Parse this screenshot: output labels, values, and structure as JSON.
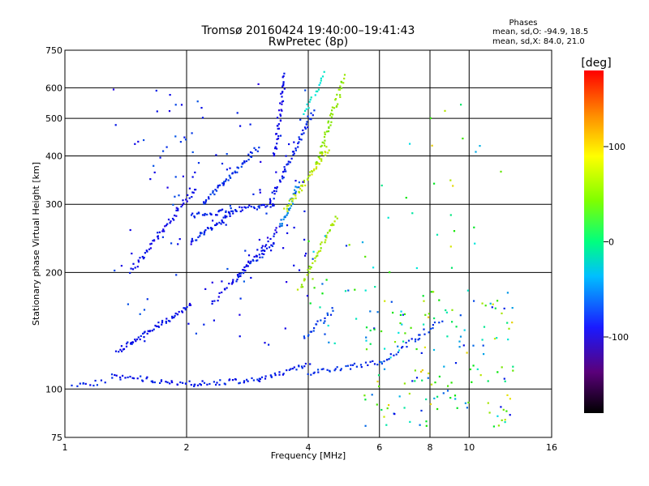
{
  "chart_data": {
    "type": "scatter",
    "title": "Tromsø 20160424 19:40:00–19:41:43",
    "subtitle": "RwPretec (8p)",
    "xlabel": "Frequency [MHz]",
    "ylabel": "Stationary phase Virtual Height [km]",
    "x_scale": "log",
    "y_scale": "log",
    "xlim": [
      1,
      16
    ],
    "ylim": [
      75,
      750
    ],
    "x_ticks": [
      1,
      2,
      4,
      6,
      8,
      10,
      16
    ],
    "x_tick_labels": [
      "1",
      "2",
      "4",
      "6",
      "8",
      "10",
      "16"
    ],
    "y_ticks": [
      75,
      100,
      200,
      300,
      400,
      500,
      600,
      750
    ],
    "y_tick_labels": [
      "75",
      "100",
      "200",
      "300",
      "400",
      "500",
      "600",
      "750"
    ],
    "grid": true,
    "legend": {
      "title": "Phases",
      "lines": [
        "mean, sd,O:  -94.9, 18.5",
        "mean, sd,X:  84.0, 21.0"
      ],
      "placement": "top-right"
    },
    "colorbar": {
      "label": "[deg]",
      "min": -180,
      "max": 180,
      "ticks": [
        100,
        0,
        -100
      ],
      "tick_labels": [
        "100",
        "0",
        "-100"
      ],
      "colormap": "rainbow"
    },
    "traces": [
      {
        "x": [
          1.05,
          1.25
        ],
        "y": [
          103,
          104
        ],
        "phase": -100,
        "n": 12
      },
      {
        "x": [
          1.3,
          2.1
        ],
        "y": [
          108,
          103
        ],
        "phase": -100,
        "n": 40
      },
      {
        "x": [
          2.1,
          3.0
        ],
        "y": [
          103,
          106
        ],
        "phase": -100,
        "n": 30
      },
      {
        "x": [
          3.0,
          4.0
        ],
        "y": [
          106,
          115
        ],
        "phase": -100,
        "n": 28
      },
      {
        "x": [
          4.0,
          6.2
        ],
        "y": [
          110,
          118
        ],
        "phase": -95,
        "n": 35
      },
      {
        "x": [
          1.35,
          2.05
        ],
        "y": [
          125,
          165
        ],
        "phase": -105,
        "n": 60
      },
      {
        "x": [
          1.45,
          2.1
        ],
        "y": [
          200,
          330
        ],
        "phase": -110,
        "n": 55
      },
      {
        "x": [
          2.05,
          2.6
        ],
        "y": [
          240,
          285
        ],
        "phase": -100,
        "n": 40
      },
      {
        "x": [
          2.05,
          3.3
        ],
        "y": [
          280,
          300
        ],
        "phase": -100,
        "n": 55
      },
      {
        "x": [
          2.2,
          3.0
        ],
        "y": [
          300,
          420
        ],
        "phase": -95,
        "n": 50
      },
      {
        "x": [
          2.6,
          3.3
        ],
        "y": [
          190,
          240
        ],
        "phase": -100,
        "n": 35
      },
      {
        "x": [
          2.3,
          3.4
        ],
        "y": [
          165,
          260
        ],
        "phase": -110,
        "n": 40
      },
      {
        "x": [
          3.2,
          4.1
        ],
        "y": [
          300,
          520
        ],
        "phase": -100,
        "n": 55
      },
      {
        "x": [
          3.3,
          3.5
        ],
        "y": [
          400,
          650
        ],
        "phase": -110,
        "n": 40
      },
      {
        "x": [
          3.4,
          3.8
        ],
        "y": [
          260,
          340
        ],
        "phase": -70,
        "n": 30
      },
      {
        "x": [
          3.5,
          4.5
        ],
        "y": [
          290,
          420
        ],
        "phase": 95,
        "n": 50
      },
      {
        "x": [
          3.8,
          4.7
        ],
        "y": [
          180,
          280
        ],
        "phase": 85,
        "n": 40
      },
      {
        "x": [
          4.2,
          4.9
        ],
        "y": [
          380,
          640
        ],
        "phase": 80,
        "n": 50
      },
      {
        "x": [
          3.9,
          4.4
        ],
        "y": [
          510,
          650
        ],
        "phase": -30,
        "n": 18
      },
      {
        "x": [
          3.9,
          4.6
        ],
        "y": [
          135,
          160
        ],
        "phase": -90,
        "n": 20
      },
      {
        "x": [
          6.3,
          8.5
        ],
        "y": [
          120,
          150
        ],
        "phase": -95,
        "n": 25
      }
    ],
    "scatter_regions": [
      {
        "x": [
          5.5,
          13.0
        ],
        "y": [
          80,
          180
        ],
        "phase_range": [
          -110,
          120
        ],
        "n": 160
      },
      {
        "x": [
          1.3,
          4.0
        ],
        "y": [
          130,
          620
        ],
        "phase_range": [
          -120,
          -80
        ],
        "n": 120
      },
      {
        "x": [
          4.0,
          6.0
        ],
        "y": [
          130,
          260
        ],
        "phase_range": [
          -100,
          100
        ],
        "n": 30
      },
      {
        "x": [
          6.0,
          12.5
        ],
        "y": [
          200,
          620
        ],
        "phase_range": [
          -60,
          120
        ],
        "n": 25
      }
    ]
  }
}
